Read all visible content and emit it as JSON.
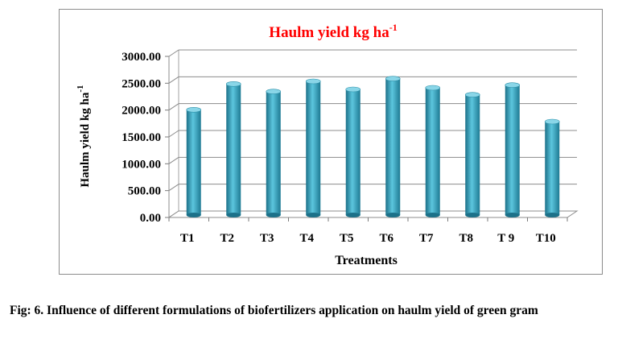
{
  "chart_data": {
    "type": "bar",
    "title": "Haulm yield kg ha",
    "title_superscript": "-1",
    "xlabel": "Treatments",
    "ylabel": "Haulm  yield kg ha",
    "ylabel_superscript": "-1",
    "categories": [
      "T1",
      "T2",
      "T3",
      "T4",
      "T5",
      "T6",
      "T7",
      "T8",
      "T 9",
      "T10"
    ],
    "values": [
      1960,
      2440,
      2300,
      2490,
      2340,
      2540,
      2370,
      2240,
      2420,
      1740
    ],
    "ylim": [
      0,
      3000
    ],
    "yticks": [
      "0.00",
      "500.00",
      "1000.00",
      "1500.00",
      "2000.00",
      "2500.00",
      "3000.00"
    ],
    "grid": true,
    "legend": "none",
    "colors": {
      "bar": "#31a9c6",
      "bar_dark": "#1c7189",
      "bar_light": "#7fd2e6",
      "title": "#ff0000"
    }
  },
  "caption": "Fig: 6. Influence of different formulations of biofertilizers application on haulm yield of green gram"
}
